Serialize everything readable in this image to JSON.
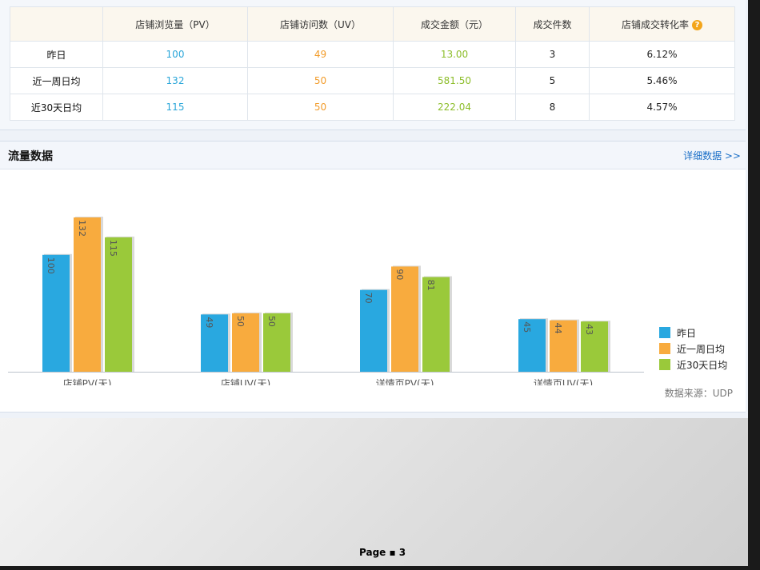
{
  "summary": {
    "headers": [
      "",
      "店铺浏览量（PV）",
      "店铺访问数（UV）",
      "成交金额（元）",
      "成交件数",
      "店铺成交转化率"
    ],
    "rows": [
      {
        "label": "昨日",
        "pv": "100",
        "uv": "49",
        "amount": "13.00",
        "count": "3",
        "rate": "6.12%"
      },
      {
        "label": "近一周日均",
        "pv": "132",
        "uv": "50",
        "amount": "581.50",
        "count": "5",
        "rate": "5.46%"
      },
      {
        "label": "近30天日均",
        "pv": "115",
        "uv": "50",
        "amount": "222.04",
        "count": "8",
        "rate": "4.57%"
      }
    ],
    "help_glyph": "?"
  },
  "traffic": {
    "title": "流量数据",
    "more_link": "详细数据 >>",
    "source": "数据来源：UDP"
  },
  "chart_data": {
    "type": "bar",
    "categories": [
      "店铺PV(天)",
      "店铺UV(天)",
      "详情页PV(天)",
      "详情页UV(天)"
    ],
    "series": [
      {
        "name": "昨日",
        "color": "#29a8e0",
        "values": [
          100,
          49,
          70,
          45
        ]
      },
      {
        "name": "近一周日均",
        "color": "#f8ab3e",
        "values": [
          132,
          50,
          90,
          44
        ]
      },
      {
        "name": "近30天日均",
        "color": "#9ac93a",
        "values": [
          115,
          50,
          81,
          43
        ]
      }
    ],
    "title": "",
    "xlabel": "",
    "ylabel": "",
    "grid": false,
    "legend_position": "right"
  },
  "footer": {
    "page_label": "Page ▪ 3"
  }
}
